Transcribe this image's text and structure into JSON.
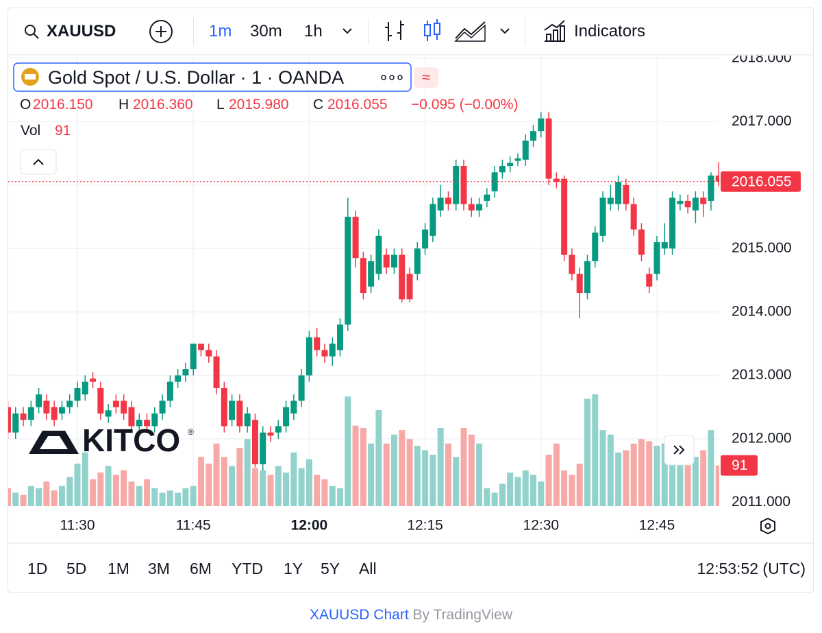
{
  "toolbar": {
    "symbol": "XAUUSD",
    "intervals": [
      "1m",
      "30m",
      "1h"
    ],
    "indicators": "Indicators"
  },
  "legend": {
    "title": "Gold Spot / U.S. Dollar · 1 · OANDA",
    "open_label": "O",
    "open": "2016.150",
    "high_label": "H",
    "high": "2016.360",
    "low_label": "L",
    "low": "2015.980",
    "close_label": "C",
    "close": "2016.055",
    "change": "−0.095 (−0.00%)",
    "volume_label": "Vol"
  },
  "watermark": "KITCO",
  "ranges": [
    "1D",
    "5D",
    "1M",
    "3M",
    "6M",
    "YTD",
    "1Y",
    "5Y",
    "All"
  ],
  "clock": "12:53:52 (UTC)",
  "footer": {
    "link": "XAUUSD Chart",
    "suffix": "By TradingView"
  },
  "chart_data": {
    "type": "candlestick",
    "categories": [
      null,
      null,
      null,
      null,
      null,
      null,
      null,
      null,
      null,
      "11:30",
      null,
      null,
      null,
      null,
      null,
      null,
      null,
      null,
      null,
      null,
      null,
      null,
      null,
      null,
      "11:45",
      null,
      null,
      null,
      null,
      null,
      null,
      null,
      null,
      null,
      null,
      null,
      null,
      null,
      null,
      "12:00",
      null,
      null,
      null,
      null,
      null,
      null,
      null,
      null,
      null,
      null,
      null,
      null,
      null,
      null,
      "12:15",
      null,
      null,
      null,
      null,
      null,
      null,
      null,
      null,
      null,
      null,
      null,
      null,
      null,
      null,
      "12:30",
      null,
      null,
      null,
      null,
      null,
      null,
      null,
      null,
      null,
      null,
      null,
      null,
      null,
      null,
      "12:45",
      null,
      null,
      null,
      null,
      null,
      null,
      null,
      null
    ],
    "open": [
      2012.5,
      2012.1,
      2012.4,
      2012.3,
      2012.5,
      2012.6,
      2012.5,
      2012.4,
      2012.5,
      2012.6,
      2012.7,
      2012.95,
      2012.8,
      2012.35,
      2012.6,
      2012.6,
      2012.5,
      2012.2,
      2012.3,
      2012.2,
      2012.4,
      2012.6,
      2012.9,
      2013.0,
      2013.1,
      2013.5,
      2013.4,
      2013.3,
      2012.8,
      2012.3,
      2012.6,
      2012.2,
      2012.3,
      2011.6,
      2012.1,
      2012.1,
      2012.2,
      2012.4,
      2012.6,
      2013.0,
      2013.6,
      2013.4,
      2013.3,
      2013.4,
      2013.8,
      2015.5,
      2014.85,
      2014.4,
      2014.6,
      2014.9,
      2014.7,
      2014.9,
      2014.6,
      2014.6,
      2015.0,
      2015.2,
      2015.6,
      2015.8,
      2015.7,
      2016.3,
      2015.7,
      2015.6,
      2015.75,
      2015.9,
      2016.2,
      2016.3,
      2016.38,
      2016.4,
      2016.7,
      2016.85,
      2017.05,
      2016.1,
      2016.1,
      2014.9,
      2014.6,
      2014.3,
      2014.8,
      2015.2,
      2015.7,
      2015.7,
      2016.0,
      2015.7,
      2015.3,
      2014.6,
      2014.6,
      2015.0,
      2015.0,
      2015.7,
      2015.75,
      2015.6,
      2015.8,
      2015.75,
      2016.15
    ],
    "high": [
      2012.6,
      2012.5,
      2012.5,
      2012.6,
      2012.8,
      2012.7,
      2012.6,
      2012.6,
      2012.7,
      2012.9,
      2013.0,
      2013.05,
      2012.9,
      2012.55,
      2012.7,
      2012.7,
      2012.6,
      2012.4,
      2012.4,
      2012.5,
      2012.7,
      2013.0,
      2013.1,
      2013.2,
      2013.5,
      2013.5,
      2013.5,
      2013.4,
      2012.9,
      2012.7,
      2012.7,
      2012.5,
      2012.4,
      2012.2,
      2012.2,
      2012.3,
      2012.6,
      2012.7,
      2013.1,
      2013.7,
      2013.75,
      2013.5,
      2013.6,
      2013.9,
      2015.8,
      2015.6,
      2014.95,
      2014.9,
      2015.3,
      2015.0,
      2015.0,
      2015.0,
      2014.7,
      2015.1,
      2015.4,
      2015.8,
      2016.0,
      2015.9,
      2016.4,
      2016.4,
      2015.8,
      2015.8,
      2015.95,
      2016.3,
      2016.4,
      2016.45,
      2016.5,
      2016.8,
      2016.95,
      2017.15,
      2017.15,
      2016.2,
      2016.15,
      2015.0,
      2014.7,
      2014.9,
      2015.35,
      2015.9,
      2016.0,
      2016.15,
      2016.1,
      2015.8,
      2015.4,
      2014.7,
      2015.2,
      2015.4,
      2015.9,
      2015.85,
      2015.85,
      2015.9,
      2015.9,
      2016.2,
      2016.36
    ],
    "low": [
      2012.0,
      2012.0,
      2012.2,
      2012.2,
      2012.4,
      2012.3,
      2012.2,
      2012.3,
      2012.4,
      2012.5,
      2012.6,
      2012.8,
      2012.3,
      2012.25,
      2012.4,
      2012.3,
      2012.1,
      2012.1,
      2012.1,
      2012.1,
      2012.3,
      2012.5,
      2012.8,
      2012.9,
      2013.0,
      2013.3,
      2013.2,
      2012.7,
      2012.1,
      2012.2,
      2012.1,
      2012.1,
      2011.55,
      2011.5,
      2011.95,
      2012.0,
      2012.1,
      2012.3,
      2012.5,
      2012.9,
      2013.3,
      2013.2,
      2013.15,
      2013.3,
      2013.7,
      2014.7,
      2014.2,
      2014.3,
      2014.5,
      2014.6,
      2014.6,
      2014.15,
      2014.15,
      2014.5,
      2014.9,
      2015.1,
      2015.5,
      2015.6,
      2015.6,
      2015.6,
      2015.5,
      2015.5,
      2015.65,
      2015.8,
      2016.1,
      2016.2,
      2016.3,
      2016.3,
      2016.6,
      2016.75,
      2016.0,
      2015.95,
      2014.8,
      2014.5,
      2013.9,
      2014.2,
      2014.7,
      2015.1,
      2015.6,
      2015.6,
      2015.6,
      2015.2,
      2014.8,
      2014.3,
      2014.5,
      2014.9,
      2014.9,
      2015.6,
      2015.55,
      2015.4,
      2015.5,
      2015.6,
      2015.98
    ],
    "close": [
      2012.1,
      2012.4,
      2012.3,
      2012.5,
      2012.7,
      2012.4,
      2012.3,
      2012.5,
      2012.6,
      2012.8,
      2012.9,
      2012.9,
      2012.4,
      2012.45,
      2012.5,
      2012.4,
      2012.2,
      2012.3,
      2012.2,
      2012.4,
      2012.6,
      2012.9,
      2013.0,
      2013.1,
      2013.5,
      2013.4,
      2013.3,
      2012.8,
      2012.2,
      2012.6,
      2012.2,
      2012.4,
      2011.6,
      2012.1,
      2012.05,
      2012.2,
      2012.5,
      2012.6,
      2013.0,
      2013.6,
      2013.4,
      2013.3,
      2013.5,
      2013.8,
      2015.5,
      2014.85,
      2014.3,
      2014.8,
      2015.2,
      2014.7,
      2014.9,
      2014.2,
      2014.2,
      2015.0,
      2015.3,
      2015.7,
      2015.8,
      2015.7,
      2016.3,
      2015.7,
      2015.6,
      2015.7,
      2015.85,
      2016.2,
      2016.3,
      2016.35,
      2016.42,
      2016.7,
      2016.85,
      2017.05,
      2016.1,
      2016.05,
      2014.9,
      2014.6,
      2014.3,
      2014.8,
      2015.25,
      2015.8,
      2015.8,
      2016.05,
      2015.7,
      2015.3,
      2014.9,
      2014.4,
      2015.1,
      2015.1,
      2015.8,
      2015.75,
      2015.65,
      2015.8,
      2015.7,
      2016.15,
      2016.055
    ],
    "volume": [
      40,
      30,
      25,
      45,
      40,
      55,
      35,
      45,
      65,
      95,
      120,
      60,
      75,
      90,
      70,
      80,
      55,
      45,
      60,
      40,
      30,
      35,
      30,
      40,
      45,
      110,
      95,
      140,
      110,
      90,
      130,
      150,
      85,
      80,
      70,
      90,
      75,
      120,
      85,
      105,
      70,
      60,
      45,
      40,
      245,
      180,
      175,
      140,
      215,
      140,
      160,
      170,
      150,
      135,
      125,
      115,
      175,
      140,
      110,
      175,
      160,
      140,
      40,
      30,
      50,
      75,
      65,
      80,
      70,
      55,
      115,
      140,
      80,
      70,
      95,
      240,
      250,
      170,
      160,
      120,
      125,
      140,
      150,
      145,
      135,
      140,
      150,
      135,
      115,
      110,
      125,
      170,
      91
    ],
    "up_color": "#089981",
    "down_color": "#f23645",
    "up_volume_color": "#92d2cc",
    "down_volume_color": "#f7a9a7",
    "ylim": [
      2010.94,
      2018.03
    ],
    "yticks": [
      {
        "value": 2011,
        "label": "2011.000"
      },
      {
        "value": 2012,
        "label": "2012.000"
      },
      {
        "value": 2013,
        "label": "2013.000"
      },
      {
        "value": 2014,
        "label": "2014.000"
      },
      {
        "value": 2015,
        "label": "2015.000"
      },
      {
        "value": 2016,
        "label": "2016.000"
      },
      {
        "value": 2017,
        "label": "2017.000"
      },
      {
        "value": 2018,
        "label": "2018.000"
      }
    ],
    "grid": true
  }
}
